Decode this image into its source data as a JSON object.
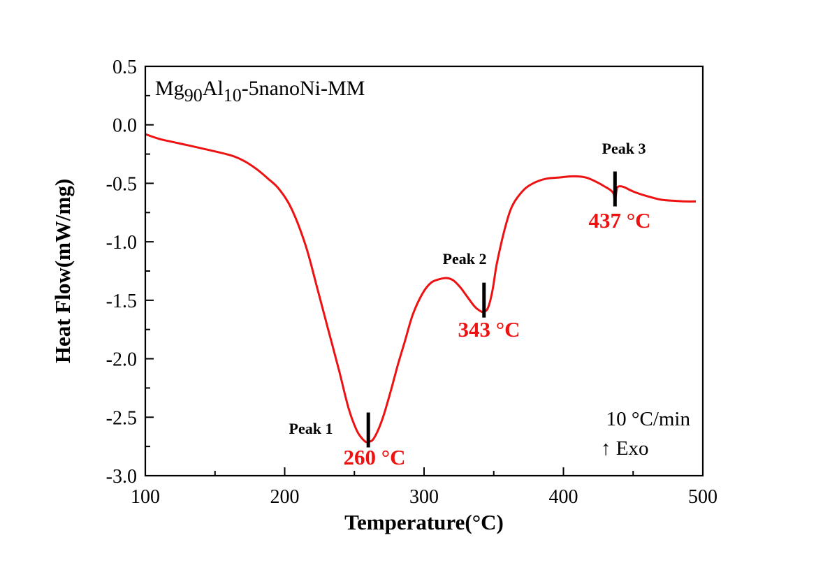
{
  "chart_data": {
    "type": "line",
    "title": "",
    "sample_label": {
      "main1": "Mg",
      "sub1": "90",
      "main2": "Al",
      "sub2": "10",
      "rest": "-5nanoNi-MM"
    },
    "xlabel": "Temperature(°C)",
    "ylabel": "Heat Flow(mW/mg)",
    "xlim": [
      100,
      500
    ],
    "ylim": [
      -3.0,
      0.5
    ],
    "x_ticks": [
      100,
      200,
      300,
      400,
      500
    ],
    "x_tick_labels": [
      "100",
      "200",
      "300",
      "400",
      "500"
    ],
    "y_ticks": [
      0.5,
      0.0,
      -0.5,
      -1.0,
      -1.5,
      -2.0,
      -2.5,
      -3.0
    ],
    "y_tick_labels": [
      "0.5",
      "0.0",
      "-0.5",
      "-1.0",
      "-1.5",
      "-2.0",
      "-2.5",
      "-3.0"
    ],
    "grid": false,
    "series": [
      {
        "name": "Mg90Al10-5nanoNi-MM",
        "color": "#ee1111",
        "x": [
          100,
          110,
          121,
          140,
          161,
          171,
          180,
          188,
          196,
          205,
          215,
          223,
          231,
          239,
          246,
          252,
          257,
          260,
          264,
          270,
          276,
          281,
          286,
          292,
          299,
          305,
          311,
          316,
          321,
          326,
          331,
          336,
          340,
          343,
          346,
          349,
          352,
          356,
          360,
          363,
          367,
          373,
          380,
          388,
          397,
          407,
          416,
          424,
          430,
          434,
          436,
          437,
          438,
          439,
          443,
          450,
          460,
          470,
          480,
          488,
          495
        ],
        "values": [
          -0.08,
          -0.12,
          -0.15,
          -0.2,
          -0.26,
          -0.31,
          -0.38,
          -0.46,
          -0.55,
          -0.72,
          -1.03,
          -1.38,
          -1.74,
          -2.1,
          -2.43,
          -2.62,
          -2.7,
          -2.71,
          -2.68,
          -2.52,
          -2.28,
          -2.06,
          -1.86,
          -1.62,
          -1.44,
          -1.35,
          -1.32,
          -1.31,
          -1.33,
          -1.39,
          -1.47,
          -1.55,
          -1.59,
          -1.6,
          -1.56,
          -1.42,
          -1.2,
          -0.98,
          -0.8,
          -0.7,
          -0.62,
          -0.54,
          -0.49,
          -0.46,
          -0.45,
          -0.44,
          -0.45,
          -0.49,
          -0.53,
          -0.56,
          -0.59,
          -0.65,
          -0.57,
          -0.53,
          -0.53,
          -0.57,
          -0.61,
          -0.64,
          -0.65,
          -0.655,
          -0.655
        ]
      }
    ],
    "annotations": [
      {
        "name": "Peak 1",
        "temperature_label": "260 °C",
        "x": 260,
        "y": -2.71
      },
      {
        "name": "Peak 2",
        "temperature_label": "343 °C",
        "x": 343,
        "y": -1.6
      },
      {
        "name": "Peak 3",
        "temperature_label": "437 °C",
        "x": 437,
        "y": -0.65
      }
    ],
    "notes": {
      "rate": "10 °C/min",
      "direction": "↑ Exo"
    }
  }
}
